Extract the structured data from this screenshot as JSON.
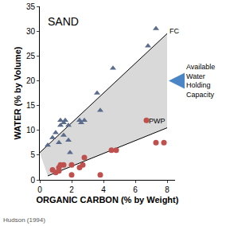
{
  "chart_data": {
    "type": "scatter",
    "panel_label": "SAND",
    "x_label": "ORGANIC CARBON (% by Weight)",
    "y_label": "WATER (% by Volume)",
    "source": "Hudson (1994)",
    "xlim": [
      0,
      8.5
    ],
    "xticks": [
      0,
      2,
      4,
      6,
      8
    ],
    "ylim": [
      0,
      35
    ],
    "yticks": [
      0,
      5,
      10,
      15,
      20,
      25,
      30,
      35
    ],
    "grid": false,
    "shade": {
      "label": "Available Water Holding Capacity",
      "color": "#d9d9d9"
    },
    "series": [
      {
        "name": "FC",
        "marker": "triangle-up",
        "color": "#5b6b8c",
        "x": [
          0.5,
          0.8,
          1.0,
          1.2,
          1.3,
          1.3,
          1.5,
          1.5,
          1.6,
          1.8,
          1.8,
          1.9,
          2.5,
          2.6,
          2.8,
          3.6,
          3.8,
          4.6,
          6.8,
          7.3
        ],
        "values": [
          7,
          8.5,
          9.5,
          7.5,
          11,
          12,
          9,
          11.5,
          12,
          8,
          11,
          5.5,
          12,
          11.5,
          12,
          17.5,
          14,
          22.5,
          27,
          30.5
        ],
        "fit": {
          "x": [
            0,
            8
          ],
          "values": [
            5.5,
            29.5
          ]
        }
      },
      {
        "name": "PWP",
        "marker": "circle",
        "color": "#c0504d",
        "x": [
          0.8,
          1.0,
          1.2,
          1.2,
          1.3,
          1.5,
          2.0,
          2.0,
          2.5,
          2.7,
          2.8,
          3.8,
          4.5,
          4.8,
          6.7,
          7.3,
          7.8
        ],
        "values": [
          2,
          1.5,
          2.5,
          1.8,
          3,
          3,
          3,
          1,
          2.5,
          3,
          4.5,
          1,
          6,
          6,
          12,
          7.5,
          7.5
        ],
        "fit": {
          "x": [
            0.5,
            8
          ],
          "values": [
            0.8,
            10.5
          ]
        }
      }
    ]
  }
}
